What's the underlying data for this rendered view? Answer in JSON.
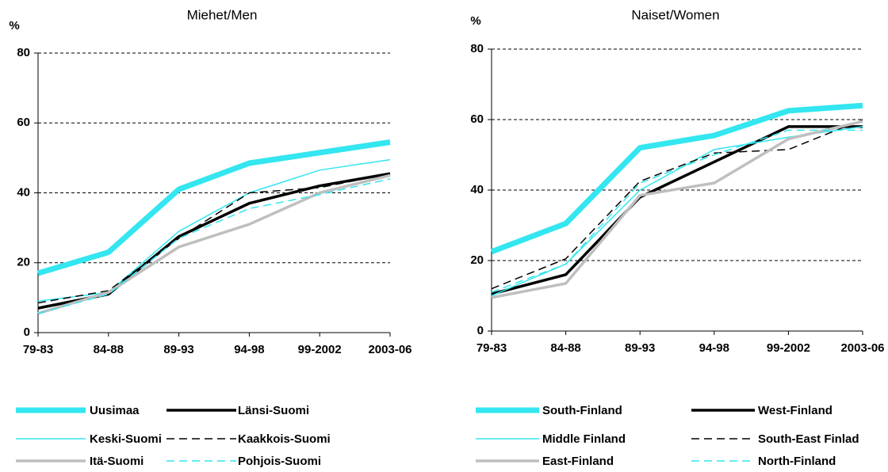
{
  "chart_data": [
    {
      "type": "line",
      "title": "Miehet/Men",
      "y_label": "%",
      "categories": [
        "79-83",
        "84-88",
        "89-93",
        "94-98",
        "99-2002",
        "2003-06"
      ],
      "ylim": [
        0,
        80
      ],
      "yticks": [
        0,
        20,
        40,
        60,
        80
      ],
      "grid": true,
      "series": [
        {
          "name": "Uusimaa",
          "color": "#33e6f0",
          "dash": false,
          "values": [
            17,
            23,
            41,
            48.5,
            51.5,
            54.5
          ]
        },
        {
          "name": "Länsi-Suomi",
          "color": "#000000",
          "dash": false,
          "values": [
            7,
            11,
            27.5,
            37,
            42,
            45.5
          ]
        },
        {
          "name": "Keski-Suomi",
          "color": "#33e6f0",
          "dash": false,
          "values": [
            9,
            11.5,
            29,
            40,
            46.5,
            49.5
          ]
        },
        {
          "name": "Kaakkois-Suomi",
          "color": "#000000",
          "dash": true,
          "values": [
            8.5,
            12,
            27,
            40,
            41.5,
            45.5
          ]
        },
        {
          "name": "Itä-Suomi",
          "color": "#bfbfbf",
          "dash": false,
          "values": [
            5.5,
            11.5,
            24.5,
            31,
            40,
            45
          ]
        },
        {
          "name": "Pohjois-Suomi",
          "color": "#33e6f0",
          "dash": true,
          "values": [
            5.5,
            11,
            27,
            35.5,
            39.5,
            44
          ]
        }
      ]
    },
    {
      "type": "line",
      "title": "Naiset/Women",
      "y_label": "%",
      "categories": [
        "79-83",
        "84-88",
        "89-93",
        "94-98",
        "99-2002",
        "2003-06"
      ],
      "ylim": [
        0,
        80
      ],
      "yticks": [
        0,
        20,
        40,
        60,
        80
      ],
      "grid": true,
      "series": [
        {
          "name": "South-Finland",
          "color": "#33e6f0",
          "dash": false,
          "values": [
            22.5,
            30.5,
            52,
            55.5,
            62.5,
            64
          ]
        },
        {
          "name": "West-Finland",
          "color": "#000000",
          "dash": false,
          "values": [
            10.5,
            16,
            38,
            48,
            58,
            58
          ]
        },
        {
          "name": "Middle Finland",
          "color": "#33e6f0",
          "dash": false,
          "values": [
            10,
            19,
            40,
            51.5,
            55,
            58
          ]
        },
        {
          "name": "South-East Finlad",
          "color": "#000000",
          "dash": true,
          "values": [
            12,
            20.5,
            42.5,
            50.5,
            51.5,
            60
          ]
        },
        {
          "name": "East-Finland",
          "color": "#bfbfbf",
          "dash": false,
          "values": [
            9.5,
            13.5,
            38.5,
            42,
            54.5,
            59.5
          ]
        },
        {
          "name": "North-Finland",
          "color": "#33e6f0",
          "dash": true,
          "values": [
            11,
            19,
            42,
            50,
            57,
            57
          ]
        }
      ]
    }
  ]
}
